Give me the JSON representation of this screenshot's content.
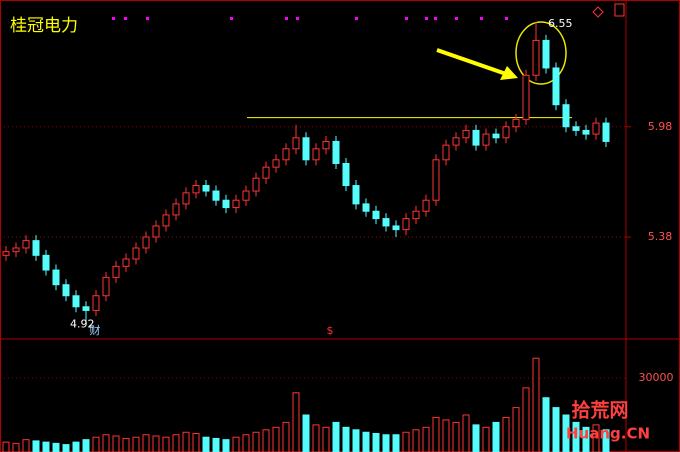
{
  "chart_data": {
    "type": "candlestick",
    "title": "桂冠电力",
    "open": [
      5.28,
      5.3,
      5.32,
      5.36,
      5.28,
      5.2,
      5.12,
      5.06,
      5.0,
      4.98,
      5.06,
      5.16,
      5.22,
      5.26,
      5.32,
      5.38,
      5.44,
      5.5,
      5.56,
      5.62,
      5.66,
      5.63,
      5.58,
      5.54,
      5.58,
      5.63,
      5.7,
      5.76,
      5.8,
      5.86,
      5.92,
      5.8,
      5.86,
      5.9,
      5.78,
      5.66,
      5.56,
      5.52,
      5.48,
      5.44,
      5.42,
      5.48,
      5.52,
      5.58,
      5.8,
      5.88,
      5.92,
      5.96,
      5.88,
      5.94,
      5.92,
      5.98,
      6.02,
      6.26,
      6.45,
      6.3,
      6.1,
      5.98,
      5.96,
      5.94,
      6.0
    ],
    "close": [
      5.3,
      5.32,
      5.36,
      5.28,
      5.2,
      5.12,
      5.06,
      5.0,
      4.98,
      5.06,
      5.16,
      5.22,
      5.26,
      5.32,
      5.38,
      5.44,
      5.5,
      5.56,
      5.62,
      5.66,
      5.63,
      5.58,
      5.54,
      5.58,
      5.63,
      5.7,
      5.76,
      5.8,
      5.86,
      5.92,
      5.8,
      5.86,
      5.9,
      5.78,
      5.66,
      5.56,
      5.52,
      5.48,
      5.44,
      5.42,
      5.48,
      5.52,
      5.58,
      5.8,
      5.88,
      5.92,
      5.96,
      5.88,
      5.94,
      5.92,
      5.98,
      6.02,
      6.26,
      6.45,
      6.3,
      6.1,
      5.98,
      5.96,
      5.94,
      6.0,
      5.9
    ],
    "high": [
      5.33,
      5.35,
      5.39,
      5.39,
      5.31,
      5.23,
      5.15,
      5.09,
      5.03,
      5.09,
      5.19,
      5.25,
      5.29,
      5.35,
      5.41,
      5.47,
      5.53,
      5.59,
      5.65,
      5.69,
      5.69,
      5.66,
      5.61,
      5.61,
      5.66,
      5.73,
      5.79,
      5.83,
      5.89,
      5.99,
      5.95,
      5.89,
      5.93,
      5.93,
      5.81,
      5.69,
      5.59,
      5.55,
      5.51,
      5.47,
      5.51,
      5.55,
      5.61,
      5.83,
      5.91,
      5.95,
      5.99,
      5.99,
      5.97,
      5.97,
      6.01,
      6.05,
      6.29,
      6.55,
      6.48,
      6.33,
      6.13,
      6.01,
      5.99,
      6.03,
      6.03
    ],
    "low": [
      5.25,
      5.27,
      5.29,
      5.25,
      5.17,
      5.09,
      5.03,
      4.97,
      4.92,
      4.95,
      5.03,
      5.13,
      5.19,
      5.23,
      5.29,
      5.35,
      5.41,
      5.47,
      5.53,
      5.59,
      5.6,
      5.55,
      5.51,
      5.51,
      5.55,
      5.6,
      5.67,
      5.73,
      5.77,
      5.83,
      5.77,
      5.77,
      5.83,
      5.75,
      5.63,
      5.53,
      5.49,
      5.45,
      5.41,
      5.38,
      5.39,
      5.45,
      5.49,
      5.55,
      5.77,
      5.85,
      5.89,
      5.85,
      5.85,
      5.89,
      5.89,
      5.95,
      5.99,
      6.23,
      6.27,
      6.07,
      5.95,
      5.93,
      5.91,
      5.91,
      5.87
    ],
    "volume": [
      4000,
      3500,
      5000,
      4500,
      4000,
      3500,
      3000,
      4000,
      5000,
      6000,
      7000,
      6500,
      5500,
      6000,
      7000,
      6500,
      6000,
      7000,
      8000,
      7500,
      6000,
      5500,
      5000,
      6000,
      7000,
      8000,
      9000,
      10000,
      12000,
      24000,
      15000,
      11000,
      10000,
      12000,
      10000,
      9000,
      8000,
      7500,
      7000,
      7000,
      8000,
      9000,
      10000,
      14000,
      13000,
      12000,
      15000,
      11000,
      10000,
      12000,
      14000,
      18000,
      26000,
      38000,
      22000,
      18000,
      15000,
      12000,
      10000,
      11000,
      9000
    ],
    "up_color": "#ff3232",
    "down_color": "#54fcfc",
    "ylim": [
      4.83,
      6.67
    ],
    "yticks": [
      5.38,
      5.98
    ],
    "volume_ylim": [
      0,
      45400
    ],
    "volume_yticks": [
      30000
    ],
    "level": 6.03,
    "level_color": "#ffff00",
    "annotations": [
      "财",
      "$"
    ],
    "watermark": [
      "拾荒网",
      "Huang.CN"
    ]
  }
}
